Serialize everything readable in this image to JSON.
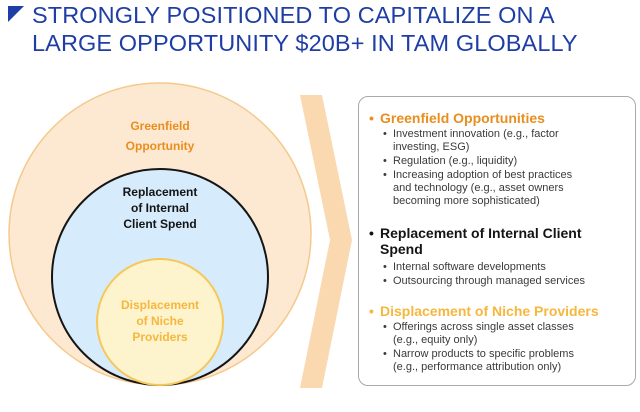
{
  "title": {
    "line1": "STRONGLY POSITIONED TO CAPITALIZE ON A",
    "line2": "LARGE OPPORTUNITY $20B+ IN TAM GLOBALLY"
  },
  "circles": {
    "greenfield": {
      "label_line1": "Greenfield",
      "label_line2": "Opportunity"
    },
    "internal": {
      "label_line1": "Replacement",
      "label_line2": "of Internal",
      "label_line3": "Client Spend"
    },
    "niche": {
      "label_line1": "Displacement",
      "label_line2": "of Niche",
      "label_line3": "Providers"
    }
  },
  "sections": [
    {
      "bullet": "•",
      "heading": "Greenfield Opportunities",
      "items": [
        {
          "line1": "Investment innovation (e.g., factor",
          "line2": "investing, ESG)"
        },
        {
          "line1": "Regulation (e.g., liquidity)"
        },
        {
          "line1": "Increasing adoption of best practices",
          "line2": "and technology (e.g., asset owners",
          "line3": "becoming more sophisticated)"
        }
      ]
    },
    {
      "bullet": "•",
      "heading_line1": "Replacement of Internal Client",
      "heading_line2": "Spend",
      "items": [
        {
          "line1": "Internal software developments"
        },
        {
          "line1": "Outsourcing through managed services"
        }
      ]
    },
    {
      "bullet": "•",
      "heading": "Displacement of Niche Providers",
      "items": [
        {
          "line1": "Offerings across single asset classes",
          "line2": "(e.g., equity only)"
        },
        {
          "line1": "Narrow products to specific problems",
          "line2": "(e.g., performance attribution only)"
        }
      ]
    }
  ],
  "colors": {
    "title_blue": "#1f3ea5",
    "greenfield_orange": "#e98e1e",
    "niche_yellow": "#f6b73c",
    "outer_fill": "#fde9d2",
    "middle_fill": "#d6ebfb",
    "inner_fill": "#fdf3cd",
    "chevron": "#fbd9b0"
  }
}
